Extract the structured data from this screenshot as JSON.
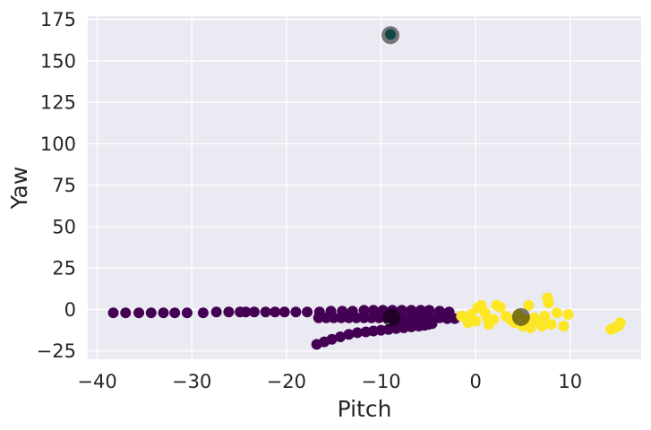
{
  "chart_data": {
    "type": "scatter",
    "title": "",
    "xlabel": "Pitch",
    "ylabel": "Yaw",
    "xlim": [
      -41,
      17.5
    ],
    "ylim": [
      -30,
      177
    ],
    "xticks": [
      -40,
      -30,
      -20,
      -10,
      0,
      10
    ],
    "xtick_labels": [
      "−40",
      "−30",
      "−20",
      "−10",
      "0",
      "10"
    ],
    "yticks": [
      -25,
      0,
      25,
      50,
      75,
      100,
      125,
      150,
      175
    ],
    "ytick_labels": [
      "−25",
      "0",
      "25",
      "50",
      "75",
      "100",
      "125",
      "150",
      "175"
    ],
    "grid": true,
    "background": "#EAEAF2",
    "grid_color": "#FFFFFF",
    "series": [
      {
        "color": "#440154",
        "points": [
          [
            -38.3,
            -2
          ],
          [
            -37,
            -2
          ],
          [
            -35.6,
            -2
          ],
          [
            -34.3,
            -2
          ],
          [
            -33,
            -2
          ],
          [
            -31.8,
            -2
          ],
          [
            -30.5,
            -2
          ],
          [
            -28.8,
            -2
          ],
          [
            -27.4,
            -1.5
          ],
          [
            -26.1,
            -1.5
          ],
          [
            -24.9,
            -1.5
          ],
          [
            -24.3,
            -1.5
          ],
          [
            -23.4,
            -1.5
          ],
          [
            -22.2,
            -1.5
          ],
          [
            -21.2,
            -1.5
          ],
          [
            -20.2,
            -1.5
          ],
          [
            -19,
            -1.5
          ],
          [
            -17.8,
            -1.5
          ],
          [
            -16.5,
            -1.5
          ],
          [
            -15.3,
            -1
          ],
          [
            -14.1,
            -1
          ],
          [
            -13,
            -1
          ],
          [
            -11.8,
            -0.5
          ],
          [
            -10.8,
            -0.5
          ],
          [
            -9.8,
            -0.5
          ],
          [
            -8.8,
            -0.5
          ],
          [
            -7.8,
            -0.5
          ],
          [
            -6.8,
            -0.5
          ],
          [
            -5.8,
            -0.5
          ],
          [
            -4.9,
            -0.5
          ],
          [
            -3.8,
            -1
          ],
          [
            -2.8,
            -1.5
          ],
          [
            -16.6,
            -5
          ],
          [
            -15.8,
            -5
          ],
          [
            -15,
            -5
          ],
          [
            -14.2,
            -5
          ],
          [
            -13.4,
            -5
          ],
          [
            -12.6,
            -5
          ],
          [
            -11.8,
            -5
          ],
          [
            -11,
            -5
          ],
          [
            -10.2,
            -5
          ],
          [
            -9.4,
            -5
          ],
          [
            -8.6,
            -5
          ],
          [
            -7.8,
            -5
          ],
          [
            -7,
            -5
          ],
          [
            -6.2,
            -5
          ],
          [
            -5.4,
            -5
          ],
          [
            -4.6,
            -5
          ],
          [
            -3.8,
            -5
          ],
          [
            -3,
            -5.5
          ],
          [
            -2.2,
            -5.5
          ],
          [
            -8.6,
            -7
          ],
          [
            -7.8,
            -7.5
          ],
          [
            -7,
            -7.5
          ],
          [
            -6.2,
            -7.5
          ],
          [
            -5.4,
            -7.5
          ],
          [
            -16.8,
            -21
          ],
          [
            -16,
            -19.5
          ],
          [
            -15.2,
            -18
          ],
          [
            -14.3,
            -16.5
          ],
          [
            -13.4,
            -15
          ],
          [
            -12.5,
            -14
          ],
          [
            -11.6,
            -13.5
          ],
          [
            -10.8,
            -13
          ],
          [
            -10,
            -12.5
          ],
          [
            -9.2,
            -12
          ],
          [
            -8.4,
            -11.5
          ],
          [
            -7.6,
            -11
          ],
          [
            -6.8,
            -10.5
          ],
          [
            -6,
            -10
          ],
          [
            -5.4,
            -9.5
          ],
          [
            -5,
            -9
          ],
          [
            -4.6,
            -8.5
          ]
        ]
      },
      {
        "color": "#FDE725",
        "points": [
          [
            -1.5,
            -4
          ],
          [
            -0.8,
            -8
          ],
          [
            -0.5,
            -3
          ],
          [
            0,
            -7
          ],
          [
            0.2,
            1
          ],
          [
            0.6,
            2.5
          ],
          [
            1,
            -2
          ],
          [
            1.2,
            -5
          ],
          [
            1.4,
            -9
          ],
          [
            1.9,
            -6
          ],
          [
            2.2,
            2.5
          ],
          [
            2.6,
            1.5
          ],
          [
            3.2,
            -4
          ],
          [
            3.7,
            -6
          ],
          [
            4.1,
            -8
          ],
          [
            4.5,
            -3
          ],
          [
            5,
            -10
          ],
          [
            5.3,
            -6
          ],
          [
            5.6,
            2.5
          ],
          [
            5.8,
            -11
          ],
          [
            6.2,
            -5
          ],
          [
            6.6,
            -7
          ],
          [
            7,
            -10
          ],
          [
            7.3,
            -4
          ],
          [
            7.6,
            7
          ],
          [
            7.7,
            4
          ],
          [
            8,
            -9
          ],
          [
            8.6,
            -2
          ],
          [
            9.3,
            -10
          ],
          [
            9.8,
            -3
          ],
          [
            14.3,
            -12
          ],
          [
            14.7,
            -11
          ],
          [
            15.1,
            -10
          ],
          [
            15.3,
            -8
          ]
        ]
      },
      {
        "color": "#21918C",
        "points": [
          [
            -9,
            166
          ]
        ]
      }
    ],
    "centers": {
      "color": "#000000",
      "points": [
        [
          -9,
          165.5
        ],
        [
          -8.9,
          -5
        ],
        [
          4.8,
          -4.5
        ]
      ]
    }
  }
}
